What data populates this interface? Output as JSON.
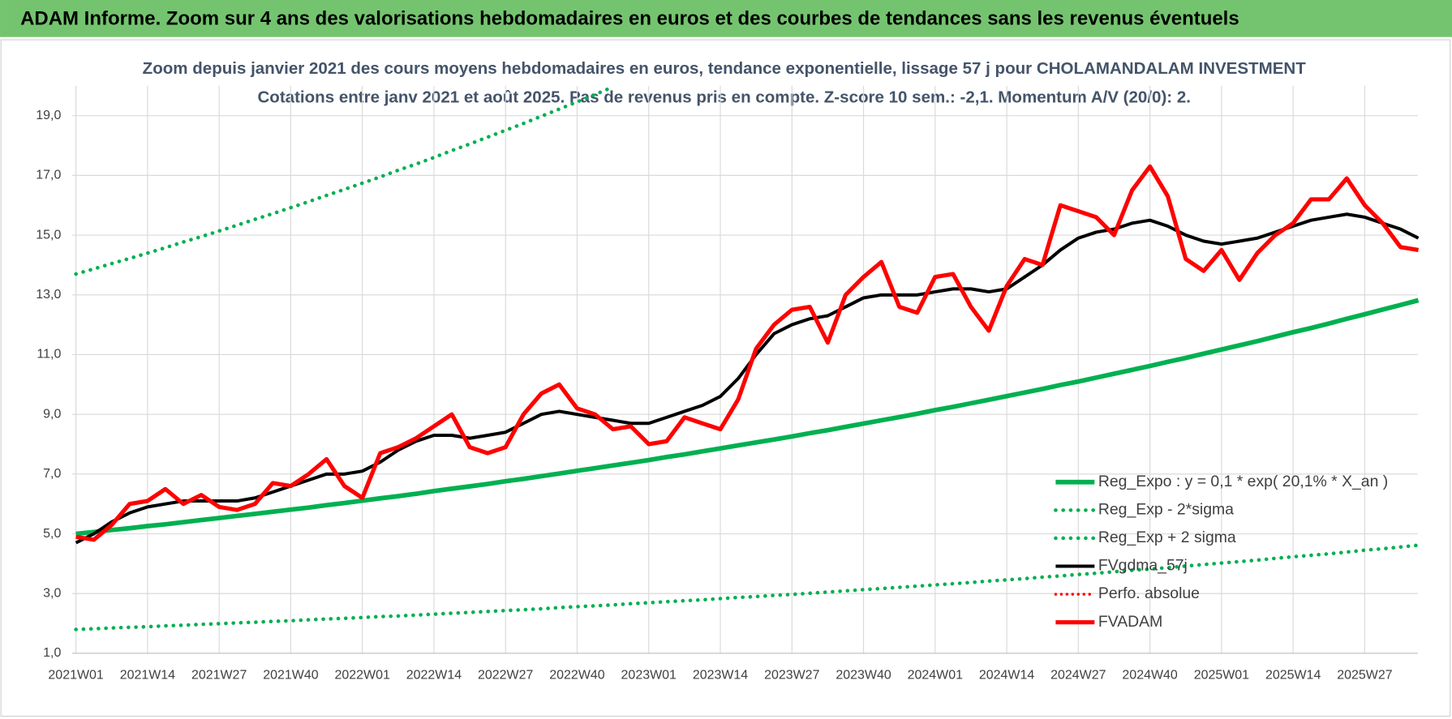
{
  "header": "ADAM Informe. Zoom sur 4 ans des valorisations hebdomadaires en euros et des courbes de tendances sans les revenus éventuels",
  "chart_data": {
    "type": "line",
    "title": "Zoom depuis janvier 2021 des cours moyens hebdomadaires en euros, tendance exponentielle, lissage 57 j pour CHOLAMANDALAM INVESTMENT",
    "subtitle": "Cotations entre janv 2021 et août 2025.  Pas de revenus pris en compte. Z-score 10 sem.: -2,1. Momentum A/V (20/0): 2.",
    "categories": [
      "2021W01",
      null,
      null,
      null,
      "2021W14",
      null,
      null,
      null,
      "2021W27",
      null,
      null,
      null,
      "2021W40",
      null,
      null,
      null,
      "2022W01",
      null,
      null,
      null,
      "2022W14",
      null,
      null,
      null,
      "2022W27",
      null,
      null,
      null,
      "2022W40",
      null,
      null,
      null,
      "2023W01",
      null,
      null,
      null,
      "2023W14",
      null,
      null,
      null,
      "2023W27",
      null,
      null,
      null,
      "2023W40",
      null,
      null,
      null,
      "2024W01",
      null,
      null,
      null,
      "2024W14",
      null,
      null,
      null,
      "2024W27",
      null,
      null,
      null,
      "2024W40",
      null,
      null,
      null,
      "2025W01",
      null,
      null,
      null,
      "2025W14",
      null,
      null,
      null,
      "2025W27",
      null,
      null,
      null
    ],
    "ylim": [
      1,
      20
    ],
    "yticks": [
      {
        "value": 1,
        "label": "1,0"
      },
      {
        "value": 3,
        "label": "3,0"
      },
      {
        "value": 5,
        "label": "5,0"
      },
      {
        "value": 7,
        "label": "7,0"
      },
      {
        "value": 9,
        "label": "9,0"
      },
      {
        "value": 11,
        "label": "11,0"
      },
      {
        "value": 13,
        "label": "13,0"
      },
      {
        "value": 15,
        "label": "15,0"
      },
      {
        "value": 17,
        "label": "17,0"
      },
      {
        "value": 19,
        "label": "19,0"
      }
    ],
    "grid": true,
    "legend": "bottom-right",
    "series": [
      {
        "name": "Reg_Expo : y = 0,1 * exp( 20,1% *  X_an )",
        "color": "#00b050",
        "style": "solid",
        "width": 5,
        "values": [
          5.0,
          5.06,
          5.13,
          5.19,
          5.26,
          5.32,
          5.39,
          5.46,
          5.53,
          5.6,
          5.67,
          5.74,
          5.81,
          5.88,
          5.96,
          6.03,
          6.11,
          6.19,
          6.26,
          6.34,
          6.43,
          6.51,
          6.59,
          6.67,
          6.76,
          6.84,
          6.93,
          7.02,
          7.11,
          7.2,
          7.29,
          7.38,
          7.47,
          7.57,
          7.66,
          7.76,
          7.86,
          7.96,
          8.06,
          8.16,
          8.26,
          8.37,
          8.47,
          8.58,
          8.69,
          8.8,
          8.91,
          9.02,
          9.14,
          9.25,
          9.37,
          9.49,
          9.61,
          9.73,
          9.85,
          9.98,
          10.1,
          10.23,
          10.36,
          10.49,
          10.62,
          10.76,
          10.89,
          11.03,
          11.17,
          11.31,
          11.45,
          11.6,
          11.75,
          11.89,
          12.04,
          12.2,
          12.35,
          12.51,
          12.66,
          12.82
        ]
      },
      {
        "name": "Reg_Exp - 2*sigma",
        "color": "#00b050",
        "style": "dotted",
        "width": 4,
        "values": [
          1.8,
          1.82,
          1.85,
          1.87,
          1.89,
          1.92,
          1.94,
          1.97,
          1.99,
          2.02,
          2.04,
          2.07,
          2.09,
          2.12,
          2.15,
          2.17,
          2.2,
          2.23,
          2.25,
          2.28,
          2.31,
          2.34,
          2.37,
          2.4,
          2.43,
          2.46,
          2.49,
          2.53,
          2.56,
          2.59,
          2.62,
          2.66,
          2.69,
          2.73,
          2.76,
          2.79,
          2.83,
          2.87,
          2.9,
          2.94,
          2.97,
          3.01,
          3.05,
          3.09,
          3.13,
          3.17,
          3.21,
          3.25,
          3.29,
          3.33,
          3.37,
          3.42,
          3.46,
          3.5,
          3.55,
          3.59,
          3.64,
          3.68,
          3.73,
          3.78,
          3.82,
          3.87,
          3.92,
          3.97,
          4.02,
          4.07,
          4.12,
          4.18,
          4.23,
          4.28,
          4.33,
          4.39,
          4.45,
          4.5,
          4.56,
          4.62
        ]
      },
      {
        "name": "Reg_Exp + 2 sigma",
        "color": "#00b050",
        "style": "dotted",
        "width": 4,
        "values": [
          13.7,
          13.87,
          14.05,
          14.22,
          14.4,
          14.58,
          14.77,
          14.95,
          15.14,
          15.33,
          15.53,
          15.72,
          15.92,
          16.12,
          16.33,
          16.53,
          16.74,
          16.95,
          17.17,
          17.38,
          17.6,
          17.83,
          18.05,
          18.28,
          18.51,
          18.74,
          18.98,
          19.22,
          19.46,
          19.71,
          19.96,
          null,
          null,
          null,
          null,
          null,
          null,
          null,
          null,
          null,
          null,
          null,
          null,
          null,
          null,
          null,
          null,
          null,
          null,
          null,
          null,
          null,
          null,
          null,
          null,
          null,
          null,
          null,
          null,
          null,
          null,
          null,
          null,
          null,
          null,
          null,
          null,
          null,
          null,
          null,
          null,
          null,
          null,
          null,
          null,
          null
        ]
      },
      {
        "name": "FVgdma_57j",
        "color": "#000000",
        "style": "solid",
        "width": 3.5,
        "values": [
          4.7,
          5.0,
          5.4,
          5.7,
          5.9,
          6.0,
          6.1,
          6.1,
          6.1,
          6.1,
          6.2,
          6.4,
          6.6,
          6.8,
          7.0,
          7.0,
          7.1,
          7.4,
          7.8,
          8.1,
          8.3,
          8.3,
          8.2,
          8.3,
          8.4,
          8.7,
          9.0,
          9.1,
          9.0,
          8.9,
          8.8,
          8.7,
          8.7,
          8.9,
          9.1,
          9.3,
          9.6,
          10.2,
          11.0,
          11.7,
          12.0,
          12.2,
          12.3,
          12.6,
          12.9,
          13.0,
          13.0,
          13.0,
          13.1,
          13.2,
          13.2,
          13.1,
          13.2,
          13.6,
          14.0,
          14.5,
          14.9,
          15.1,
          15.2,
          15.4,
          15.5,
          15.3,
          15.0,
          14.8,
          14.7,
          14.8,
          14.9,
          15.1,
          15.3,
          15.5,
          15.6,
          15.7,
          15.6,
          15.4,
          15.2,
          14.9
        ]
      },
      {
        "name": "Perfo. absolue",
        "color": "#ff0000",
        "style": "dotted",
        "width": 3,
        "values": [
          null,
          null,
          null,
          null,
          null,
          null,
          null,
          null,
          null,
          null,
          null,
          null,
          null,
          null,
          null,
          null,
          null,
          null,
          null,
          null,
          null,
          null,
          null,
          null,
          null,
          null,
          null,
          null,
          null,
          null,
          null,
          null,
          null,
          null,
          null,
          null,
          null,
          null,
          null,
          null,
          null,
          null,
          null,
          null,
          null,
          null,
          null,
          null,
          null,
          null,
          null,
          null,
          null,
          null,
          null,
          null,
          null,
          null,
          null,
          null,
          null,
          null,
          null,
          null,
          null,
          null,
          null,
          null,
          null,
          null,
          null,
          null,
          null,
          null,
          null,
          null
        ]
      },
      {
        "name": "FVADAM",
        "color": "#ff0000",
        "style": "solid",
        "width": 4.5,
        "values": [
          4.9,
          4.8,
          5.3,
          6.0,
          6.1,
          6.5,
          6.0,
          6.3,
          5.9,
          5.8,
          6.0,
          6.7,
          6.6,
          7.0,
          7.5,
          6.6,
          6.2,
          7.7,
          7.9,
          8.2,
          8.6,
          9.0,
          7.9,
          7.7,
          7.9,
          9.0,
          9.7,
          10.0,
          9.2,
          9.0,
          8.5,
          8.6,
          8.0,
          8.1,
          8.9,
          8.7,
          8.5,
          9.5,
          11.2,
          12.0,
          12.5,
          12.6,
          11.4,
          13.0,
          13.6,
          14.1,
          12.6,
          12.4,
          13.6,
          13.7,
          12.6,
          11.8,
          13.3,
          14.2,
          14.0,
          16.0,
          15.8,
          15.6,
          15.0,
          16.5,
          17.3,
          16.3,
          14.2,
          13.8,
          14.5,
          13.5,
          14.4,
          15.0,
          15.4,
          16.2,
          16.2,
          16.9,
          16.0,
          15.4,
          14.6,
          14.5
        ]
      }
    ]
  }
}
